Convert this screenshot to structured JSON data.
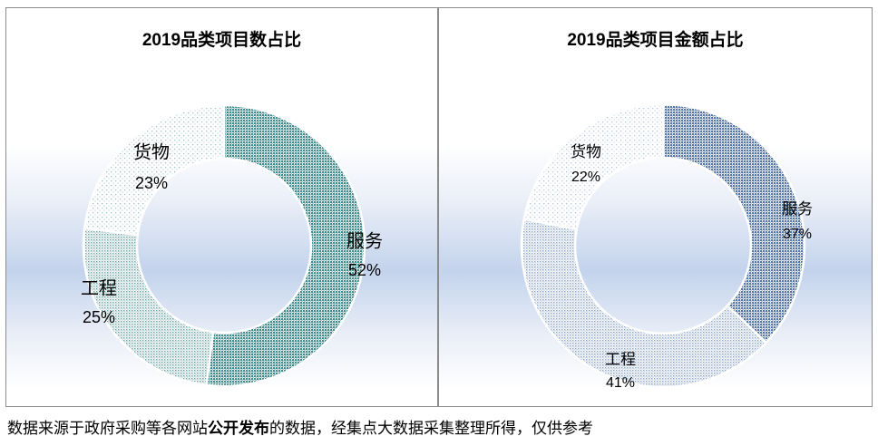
{
  "chart_data": [
    {
      "type": "pie",
      "variant": "donut",
      "title": "2019品类项目数占比",
      "slices": [
        {
          "category": "服务",
          "value": 52,
          "label": "52%"
        },
        {
          "category": "工程",
          "value": 25,
          "label": "25%"
        },
        {
          "category": "货物",
          "value": 23,
          "label": "23%"
        }
      ]
    },
    {
      "type": "pie",
      "variant": "donut",
      "title": "2019品类项目金额占比",
      "slices": [
        {
          "category": "服务",
          "value": 37,
          "label": "37%"
        },
        {
          "category": "工程",
          "value": 41,
          "label": "41%"
        },
        {
          "category": "货物",
          "value": 22,
          "label": "22%"
        }
      ]
    }
  ],
  "footer": {
    "prefix": "数据来源于政府采购等各网站",
    "emphasis": "公开发布",
    "suffix": "的数据，经集点大数据采集整理所得，仅供参考"
  },
  "colors": {
    "service_1": "#3f8a8d",
    "engineering_1": "#6aa3a5",
    "goods_1": "#9ec3c4",
    "service_2": "#5575a6",
    "engineering_2": "#8aa4c9",
    "goods_2": "#b2c4de"
  }
}
